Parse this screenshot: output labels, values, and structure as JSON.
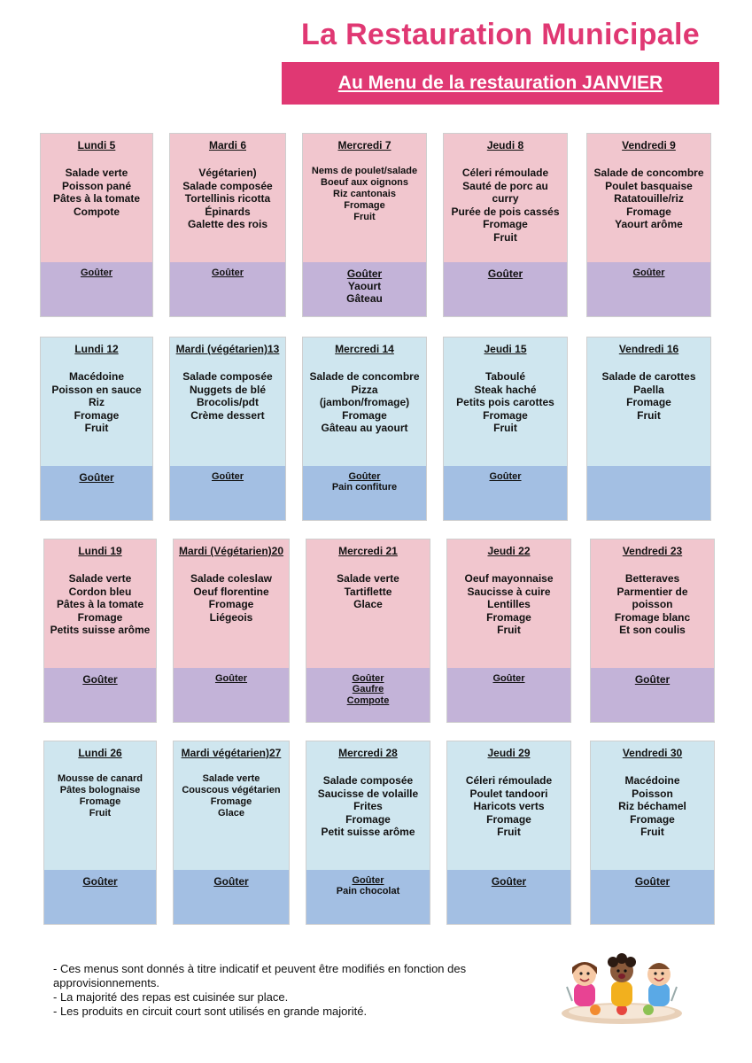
{
  "header": {
    "title": "La Restauration Municipale",
    "banner": "Au Menu de la restauration JANVIER"
  },
  "weeks": [
    {
      "days": [
        {
          "day": "Lundi 5",
          "items": [
            "Salade verte",
            "Poisson pané",
            "Pâtes à la tomate",
            "Compote"
          ],
          "gouter": "Goûter",
          "gouter_extra": []
        },
        {
          "day": "Mardi  6",
          "items": [
            "Végétarien)",
            "Salade composée",
            "Tortellinis ricotta",
            "Épinards",
            "Galette des rois"
          ],
          "gouter": "Goûter",
          "gouter_extra": []
        },
        {
          "day": "Mercredi 7",
          "items": [
            "Nems de poulet/salade",
            "Boeuf aux oignons",
            "Riz cantonais",
            "Fromage",
            "Fruit"
          ],
          "gouter": "Goûter",
          "gouter_extra": [
            "Yaourt",
            "Gâteau"
          ]
        },
        {
          "day": "Jeudi 8",
          "items": [
            "Céleri rémoulade",
            "Sauté de porc au",
            "curry",
            "Purée de pois cassés",
            "Fromage",
            "Fruit"
          ],
          "gouter": "Goûter",
          "gouter_extra": []
        },
        {
          "day": "Vendredi 9",
          "items": [
            "Salade de concombre",
            "Poulet basquaise",
            "Ratatouille/riz",
            "Fromage",
            "Yaourt arôme"
          ],
          "gouter": "Goûter",
          "gouter_extra": []
        }
      ]
    },
    {
      "days": [
        {
          "day": "Lundi 12",
          "items": [
            "Macédoine",
            "Poisson en sauce",
            "Riz",
            "Fromage",
            "Fruit"
          ],
          "gouter": "Goûter",
          "gouter_extra": []
        },
        {
          "day": "Mardi  (végétarien)13",
          "items": [
            "Salade composée",
            "Nuggets de blé",
            "Brocolis/pdt",
            "Crème dessert"
          ],
          "gouter": "Goûter",
          "gouter_extra": []
        },
        {
          "day": "Mercredi 14",
          "items": [
            "Salade de concombre",
            "Pizza",
            "(jambon/fromage)",
            "Fromage",
            "Gâteau au yaourt"
          ],
          "gouter": "Goûter",
          "gouter_extra": [
            "Pain confiture"
          ]
        },
        {
          "day": "Jeudi 15",
          "items": [
            "Taboulé",
            "Steak haché",
            "Petits pois carottes",
            "Fromage",
            "Fruit"
          ],
          "gouter": "Goûter",
          "gouter_extra": []
        },
        {
          "day": "Vendredi 16",
          "items": [
            "Salade de carottes",
            "Paella",
            "Fromage",
            "Fruit"
          ],
          "gouter": "",
          "gouter_extra": []
        }
      ]
    },
    {
      "days": [
        {
          "day": "Lundi 19",
          "items": [
            "Salade verte",
            "Cordon bleu",
            "Pâtes à la tomate",
            "Fromage",
            "Petits suisse arôme"
          ],
          "gouter": "Goûter",
          "gouter_extra": []
        },
        {
          "day": "Mardi (Végétarien)20",
          "items": [
            "Salade coleslaw",
            "Oeuf florentine",
            "Fromage",
            "Liégeois"
          ],
          "gouter": "Goûter",
          "gouter_extra": []
        },
        {
          "day": "Mercredi 21",
          "items": [
            "Salade verte",
            "Tartiflette",
            "Glace"
          ],
          "gouter": "Goûter",
          "gouter_extra": [
            "Gaufre",
            "Compote"
          ]
        },
        {
          "day": "Jeudi 22",
          "items": [
            "Oeuf mayonnaise",
            "Saucisse à cuire",
            "Lentilles",
            "Fromage",
            "Fruit"
          ],
          "gouter": "Goûter",
          "gouter_extra": []
        },
        {
          "day": "Vendredi 23",
          "items": [
            "Betteraves",
            "Parmentier de",
            "poisson",
            "Fromage blanc",
            "Et son coulis"
          ],
          "gouter": "Goûter",
          "gouter_extra": []
        }
      ]
    },
    {
      "days": [
        {
          "day": "Lundi 26",
          "items": [
            "Mousse de canard",
            "Pâtes bolognaise",
            "Fromage",
            "Fruit"
          ],
          "gouter": "Goûter",
          "gouter_extra": []
        },
        {
          "day": "Mardi  végétarien)27",
          "items": [
            "Salade verte",
            "Couscous végétarien",
            "Fromage",
            "Glace"
          ],
          "gouter": "Goûter",
          "gouter_extra": []
        },
        {
          "day": "Mercredi 28",
          "items": [
            "Salade composée",
            "Saucisse de volaille",
            "Frites",
            "Fromage",
            "Petit suisse arôme"
          ],
          "gouter": "Goûter",
          "gouter_extra": [
            "Pain chocolat"
          ]
        },
        {
          "day": "Jeudi 29",
          "items": [
            "Céleri rémoulade",
            "Poulet tandoori",
            "Haricots verts",
            "Fromage",
            "Fruit"
          ],
          "gouter": "Goûter",
          "gouter_extra": []
        },
        {
          "day": "Vendredi 30",
          "items": [
            "Macédoine",
            "Poisson",
            "Riz béchamel",
            "Fromage",
            "Fruit"
          ],
          "gouter": "Goûter",
          "gouter_extra": []
        }
      ]
    }
  ],
  "notes": [
    "- Ces menus sont donnés à titre indicatif et peuvent être modifiés en fonction des approvisionnements.",
    "- La majorité des repas est cuisinée sur place.",
    "- Les produits en circuit court sont utilisés en grande majorité."
  ],
  "colors": {
    "brand": "#e03873",
    "pink": "#f1c6ce",
    "purple": "#c3b3d8",
    "light_blue": "#cfe6ef",
    "blue": "#a3bfe3"
  },
  "illustration": "children-eating-icon"
}
